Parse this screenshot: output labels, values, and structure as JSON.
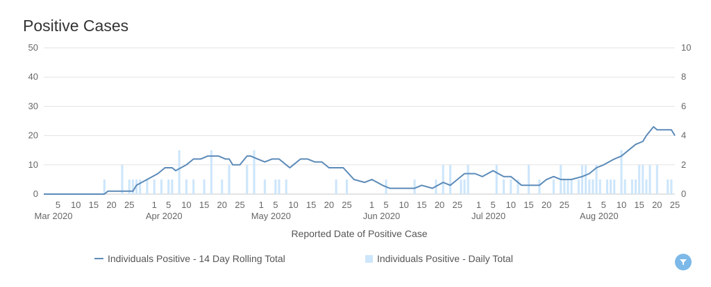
{
  "chart_data": {
    "type": "bar+line",
    "title": "Positive Cases",
    "xlabel": "Reported Date of Positive Case",
    "x_start": "2020-03-01",
    "x_end": "2020-08-25",
    "y_left": {
      "ylim": [
        0,
        50
      ],
      "ticks": [
        "0",
        "10",
        "20",
        "30",
        "40",
        "50"
      ]
    },
    "y_right": {
      "ylim": [
        0,
        10
      ],
      "ticks": [
        "0",
        "2",
        "4",
        "6",
        "8",
        "10"
      ]
    },
    "x_day_ticks": [
      {
        "date": "2020-03-05",
        "label": "5"
      },
      {
        "date": "2020-03-10",
        "label": "10"
      },
      {
        "date": "2020-03-15",
        "label": "15"
      },
      {
        "date": "2020-03-20",
        "label": "20"
      },
      {
        "date": "2020-03-25",
        "label": "25"
      },
      {
        "date": "2020-04-01",
        "label": "1"
      },
      {
        "date": "2020-04-05",
        "label": "5"
      },
      {
        "date": "2020-04-10",
        "label": "10"
      },
      {
        "date": "2020-04-15",
        "label": "15"
      },
      {
        "date": "2020-04-20",
        "label": "20"
      },
      {
        "date": "2020-04-25",
        "label": "25"
      },
      {
        "date": "2020-05-01",
        "label": "1"
      },
      {
        "date": "2020-05-05",
        "label": "5"
      },
      {
        "date": "2020-05-10",
        "label": "10"
      },
      {
        "date": "2020-05-15",
        "label": "15"
      },
      {
        "date": "2020-05-20",
        "label": "20"
      },
      {
        "date": "2020-05-25",
        "label": "25"
      },
      {
        "date": "2020-06-01",
        "label": "1"
      },
      {
        "date": "2020-06-05",
        "label": "5"
      },
      {
        "date": "2020-06-10",
        "label": "10"
      },
      {
        "date": "2020-06-15",
        "label": "15"
      },
      {
        "date": "2020-06-20",
        "label": "20"
      },
      {
        "date": "2020-06-25",
        "label": "25"
      },
      {
        "date": "2020-07-01",
        "label": "1"
      },
      {
        "date": "2020-07-05",
        "label": "5"
      },
      {
        "date": "2020-07-10",
        "label": "10"
      },
      {
        "date": "2020-07-15",
        "label": "15"
      },
      {
        "date": "2020-07-20",
        "label": "20"
      },
      {
        "date": "2020-07-25",
        "label": "25"
      },
      {
        "date": "2020-08-01",
        "label": "1"
      },
      {
        "date": "2020-08-05",
        "label": "5"
      },
      {
        "date": "2020-08-10",
        "label": "10"
      },
      {
        "date": "2020-08-15",
        "label": "15"
      },
      {
        "date": "2020-08-20",
        "label": "20"
      },
      {
        "date": "2020-08-25",
        "label": "25"
      }
    ],
    "x_month_labels": [
      {
        "date": "2020-03-01",
        "label": "Mar 2020"
      },
      {
        "date": "2020-04-01",
        "label": "Apr 2020"
      },
      {
        "date": "2020-05-01",
        "label": "May 2020"
      },
      {
        "date": "2020-06-01",
        "label": "Jun 2020"
      },
      {
        "date": "2020-07-01",
        "label": "Jul 2020"
      },
      {
        "date": "2020-08-01",
        "label": "Aug 2020"
      }
    ],
    "series": [
      {
        "name": "Individuals Positive - 14 Day Rolling Total",
        "kind": "line",
        "axis": "left",
        "color": "#5b8ab8",
        "points": [
          {
            "date": "2020-03-01",
            "y": 0
          },
          {
            "date": "2020-03-18",
            "y": 0
          },
          {
            "date": "2020-03-19",
            "y": 1
          },
          {
            "date": "2020-03-26",
            "y": 1
          },
          {
            "date": "2020-03-27",
            "y": 3
          },
          {
            "date": "2020-03-30",
            "y": 5
          },
          {
            "date": "2020-04-02",
            "y": 7
          },
          {
            "date": "2020-04-04",
            "y": 9
          },
          {
            "date": "2020-04-06",
            "y": 9
          },
          {
            "date": "2020-04-07",
            "y": 8
          },
          {
            "date": "2020-04-10",
            "y": 10
          },
          {
            "date": "2020-04-12",
            "y": 12
          },
          {
            "date": "2020-04-14",
            "y": 12
          },
          {
            "date": "2020-04-16",
            "y": 13
          },
          {
            "date": "2020-04-19",
            "y": 13
          },
          {
            "date": "2020-04-21",
            "y": 12
          },
          {
            "date": "2020-04-22",
            "y": 12
          },
          {
            "date": "2020-04-23",
            "y": 10
          },
          {
            "date": "2020-04-25",
            "y": 10
          },
          {
            "date": "2020-04-27",
            "y": 13
          },
          {
            "date": "2020-04-28",
            "y": 13
          },
          {
            "date": "2020-04-30",
            "y": 12
          },
          {
            "date": "2020-05-02",
            "y": 11
          },
          {
            "date": "2020-05-04",
            "y": 12
          },
          {
            "date": "2020-05-06",
            "y": 12
          },
          {
            "date": "2020-05-08",
            "y": 10
          },
          {
            "date": "2020-05-09",
            "y": 9
          },
          {
            "date": "2020-05-10",
            "y": 10
          },
          {
            "date": "2020-05-12",
            "y": 12
          },
          {
            "date": "2020-05-14",
            "y": 12
          },
          {
            "date": "2020-05-16",
            "y": 11
          },
          {
            "date": "2020-05-18",
            "y": 11
          },
          {
            "date": "2020-05-20",
            "y": 9
          },
          {
            "date": "2020-05-24",
            "y": 9
          },
          {
            "date": "2020-05-27",
            "y": 5
          },
          {
            "date": "2020-05-30",
            "y": 4
          },
          {
            "date": "2020-06-01",
            "y": 5
          },
          {
            "date": "2020-06-04",
            "y": 3
          },
          {
            "date": "2020-06-06",
            "y": 2
          },
          {
            "date": "2020-06-13",
            "y": 2
          },
          {
            "date": "2020-06-15",
            "y": 3
          },
          {
            "date": "2020-06-18",
            "y": 2
          },
          {
            "date": "2020-06-21",
            "y": 4
          },
          {
            "date": "2020-06-23",
            "y": 3
          },
          {
            "date": "2020-06-24",
            "y": 4
          },
          {
            "date": "2020-06-27",
            "y": 7
          },
          {
            "date": "2020-06-30",
            "y": 7
          },
          {
            "date": "2020-07-02",
            "y": 6
          },
          {
            "date": "2020-07-05",
            "y": 8
          },
          {
            "date": "2020-07-08",
            "y": 6
          },
          {
            "date": "2020-07-10",
            "y": 6
          },
          {
            "date": "2020-07-13",
            "y": 3
          },
          {
            "date": "2020-07-18",
            "y": 3
          },
          {
            "date": "2020-07-20",
            "y": 5
          },
          {
            "date": "2020-07-22",
            "y": 6
          },
          {
            "date": "2020-07-24",
            "y": 5
          },
          {
            "date": "2020-07-27",
            "y": 5
          },
          {
            "date": "2020-07-30",
            "y": 6
          },
          {
            "date": "2020-08-01",
            "y": 7
          },
          {
            "date": "2020-08-03",
            "y": 9
          },
          {
            "date": "2020-08-05",
            "y": 10
          },
          {
            "date": "2020-08-08",
            "y": 12
          },
          {
            "date": "2020-08-10",
            "y": 13
          },
          {
            "date": "2020-08-12",
            "y": 15
          },
          {
            "date": "2020-08-14",
            "y": 17
          },
          {
            "date": "2020-08-16",
            "y": 18
          },
          {
            "date": "2020-08-17",
            "y": 20
          },
          {
            "date": "2020-08-19",
            "y": 23
          },
          {
            "date": "2020-08-20",
            "y": 22
          },
          {
            "date": "2020-08-24",
            "y": 22
          },
          {
            "date": "2020-08-25",
            "y": 20
          }
        ]
      },
      {
        "name": "Individuals Positive - Daily Total",
        "kind": "bar",
        "axis": "right",
        "color": "#cde6fb",
        "points": [
          {
            "date": "2020-03-18",
            "y": 1
          },
          {
            "date": "2020-03-23",
            "y": 2
          },
          {
            "date": "2020-03-25",
            "y": 1
          },
          {
            "date": "2020-03-26",
            "y": 1
          },
          {
            "date": "2020-03-27",
            "y": 1
          },
          {
            "date": "2020-03-28",
            "y": 1
          },
          {
            "date": "2020-03-30",
            "y": 1
          },
          {
            "date": "2020-04-01",
            "y": 1
          },
          {
            "date": "2020-04-03",
            "y": 1
          },
          {
            "date": "2020-04-05",
            "y": 1
          },
          {
            "date": "2020-04-06",
            "y": 1
          },
          {
            "date": "2020-04-08",
            "y": 3
          },
          {
            "date": "2020-04-10",
            "y": 1
          },
          {
            "date": "2020-04-12",
            "y": 1
          },
          {
            "date": "2020-04-15",
            "y": 1
          },
          {
            "date": "2020-04-17",
            "y": 3
          },
          {
            "date": "2020-04-20",
            "y": 1
          },
          {
            "date": "2020-04-22",
            "y": 2
          },
          {
            "date": "2020-04-27",
            "y": 2
          },
          {
            "date": "2020-04-29",
            "y": 3
          },
          {
            "date": "2020-05-02",
            "y": 1
          },
          {
            "date": "2020-05-05",
            "y": 1
          },
          {
            "date": "2020-05-06",
            "y": 1
          },
          {
            "date": "2020-05-08",
            "y": 1
          },
          {
            "date": "2020-05-22",
            "y": 1
          },
          {
            "date": "2020-05-25",
            "y": 1
          },
          {
            "date": "2020-06-05",
            "y": 1
          },
          {
            "date": "2020-06-13",
            "y": 1
          },
          {
            "date": "2020-06-19",
            "y": 1
          },
          {
            "date": "2020-06-21",
            "y": 2
          },
          {
            "date": "2020-06-23",
            "y": 2
          },
          {
            "date": "2020-06-26",
            "y": 1
          },
          {
            "date": "2020-06-27",
            "y": 1
          },
          {
            "date": "2020-06-28",
            "y": 2
          },
          {
            "date": "2020-07-06",
            "y": 2
          },
          {
            "date": "2020-07-08",
            "y": 1
          },
          {
            "date": "2020-07-10",
            "y": 1
          },
          {
            "date": "2020-07-12",
            "y": 1
          },
          {
            "date": "2020-07-15",
            "y": 2
          },
          {
            "date": "2020-07-18",
            "y": 1
          },
          {
            "date": "2020-07-22",
            "y": 1
          },
          {
            "date": "2020-07-24",
            "y": 2
          },
          {
            "date": "2020-07-25",
            "y": 1
          },
          {
            "date": "2020-07-26",
            "y": 1
          },
          {
            "date": "2020-07-27",
            "y": 1
          },
          {
            "date": "2020-07-29",
            "y": 1
          },
          {
            "date": "2020-07-30",
            "y": 2
          },
          {
            "date": "2020-07-31",
            "y": 2
          },
          {
            "date": "2020-08-01",
            "y": 1
          },
          {
            "date": "2020-08-02",
            "y": 1
          },
          {
            "date": "2020-08-03",
            "y": 2
          },
          {
            "date": "2020-08-04",
            "y": 1
          },
          {
            "date": "2020-08-06",
            "y": 1
          },
          {
            "date": "2020-08-07",
            "y": 1
          },
          {
            "date": "2020-08-08",
            "y": 1
          },
          {
            "date": "2020-08-10",
            "y": 3
          },
          {
            "date": "2020-08-11",
            "y": 1
          },
          {
            "date": "2020-08-13",
            "y": 1
          },
          {
            "date": "2020-08-14",
            "y": 1
          },
          {
            "date": "2020-08-15",
            "y": 2
          },
          {
            "date": "2020-08-16",
            "y": 2
          },
          {
            "date": "2020-08-17",
            "y": 1
          },
          {
            "date": "2020-08-18",
            "y": 2
          },
          {
            "date": "2020-08-20",
            "y": 2
          },
          {
            "date": "2020-08-23",
            "y": 1
          },
          {
            "date": "2020-08-24",
            "y": 1
          }
        ]
      }
    ]
  },
  "legend": {
    "items": [
      {
        "label": "Individuals Positive - 14 Day Rolling Total"
      },
      {
        "label": "Individuals Positive - Daily Total"
      }
    ]
  },
  "controls": {
    "filter_icon": "filter-icon",
    "filter_color": "#7db9e8"
  }
}
